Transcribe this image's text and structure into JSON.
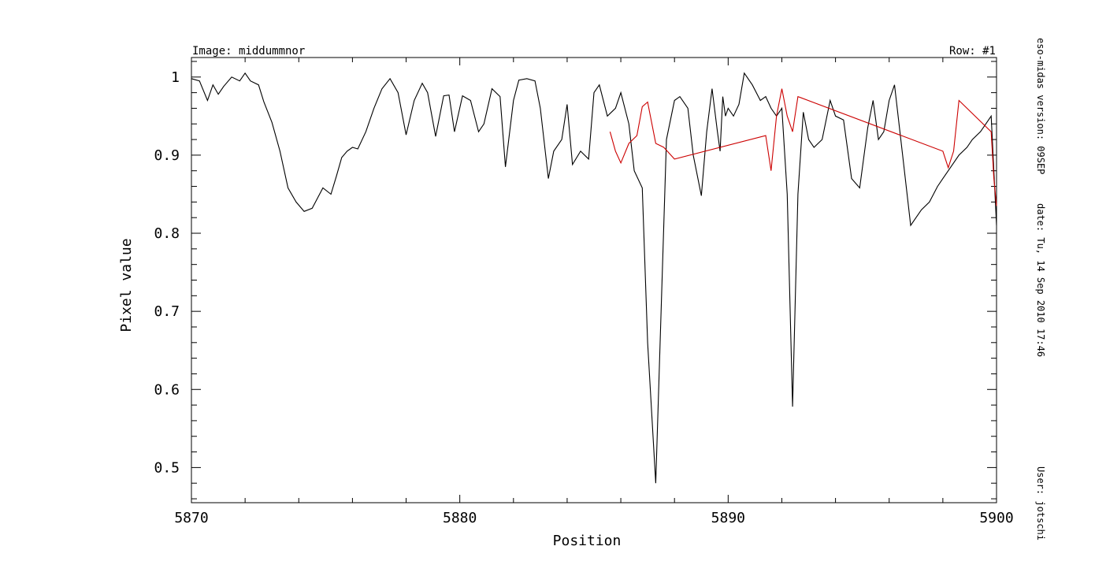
{
  "header": {
    "image_label": "Image: middummnor",
    "row_label": "Row: #1"
  },
  "side_info": {
    "version": "eso-midas version: 09SEP",
    "date": "date: Tu, 14 Sep 2010 17:46",
    "user": "User: jotschi"
  },
  "colors": {
    "primary_series": "#000000",
    "secondary_series": "#cc0000",
    "axes": "#000000"
  },
  "chart_data": {
    "type": "line",
    "title": "",
    "xlabel": "Position",
    "ylabel": "Pixel value",
    "xlim": [
      5870,
      5900
    ],
    "ylim": [
      0.455,
      1.025
    ],
    "x_ticks": [
      5870,
      5880,
      5890,
      5900
    ],
    "x_tick_labels": [
      "5870",
      "5880",
      "5890",
      "5900"
    ],
    "x_minor_step": 2,
    "y_ticks": [
      0.5,
      0.6,
      0.7,
      0.8,
      0.9,
      1.0
    ],
    "y_tick_labels": [
      "0.5",
      "0.6",
      "0.7",
      "0.8",
      "0.9",
      "1"
    ],
    "y_minor_step": 0.02,
    "grid": false,
    "series": [
      {
        "x": [
          5870.0,
          5870.3,
          5870.6,
          5870.8,
          5871.0,
          5871.2,
          5871.5,
          5871.8,
          5872.0,
          5872.2,
          5872.5,
          5872.7,
          5873.0,
          5873.3,
          5873.6,
          5873.9,
          5874.2,
          5874.5,
          5874.7,
          5874.9,
          5875.2,
          5875.4,
          5875.6,
          5875.8,
          5876.0,
          5876.2,
          5876.5,
          5876.8,
          5877.1,
          5877.4,
          5877.7,
          5878.0,
          5878.3,
          5878.6,
          5878.8,
          5879.1,
          5879.4,
          5879.6,
          5879.8,
          5880.1,
          5880.4,
          5880.7,
          5880.9,
          5881.2,
          5881.5,
          5881.7,
          5882.0,
          5882.2,
          5882.5,
          5882.8,
          5883.0,
          5883.3,
          5883.5,
          5883.8,
          5884.0,
          5884.2,
          5884.5,
          5884.8,
          5885.0,
          5885.2,
          5885.5,
          5885.8,
          5886.0,
          5886.3,
          5886.5,
          5886.8,
          5887.0,
          5887.3,
          5887.5,
          5887.7,
          5888.0,
          5888.2,
          5888.5,
          5888.7,
          5889.0,
          5889.2,
          5889.4,
          5889.6,
          5889.7,
          5889.8,
          5889.9,
          5890.0,
          5890.2,
          5890.4,
          5890.6,
          5890.9,
          5891.2,
          5891.4,
          5891.6,
          5891.8,
          5892.0,
          5892.2,
          5892.4,
          5892.6,
          5892.8,
          5893.0,
          5893.2,
          5893.5,
          5893.8,
          5894.0,
          5894.3,
          5894.6,
          5894.9,
          5895.2,
          5895.4,
          5895.6,
          5895.8,
          5896.0,
          5896.2,
          5896.5,
          5896.8,
          5897.0,
          5897.2,
          5897.5,
          5897.8,
          5898.0,
          5898.2,
          5898.4,
          5898.6,
          5898.9,
          5899.1,
          5899.4,
          5899.6,
          5899.8,
          5900.0
        ],
        "values": [
          0.998,
          0.995,
          0.97,
          0.99,
          0.978,
          0.988,
          1.0,
          0.995,
          1.005,
          0.995,
          0.99,
          0.968,
          0.942,
          0.905,
          0.858,
          0.84,
          0.828,
          0.832,
          0.845,
          0.858,
          0.85,
          0.873,
          0.897,
          0.905,
          0.91,
          0.908,
          0.93,
          0.96,
          0.985,
          0.998,
          0.98,
          0.926,
          0.97,
          0.992,
          0.98,
          0.924,
          0.976,
          0.977,
          0.93,
          0.976,
          0.97,
          0.93,
          0.94,
          0.985,
          0.975,
          0.885,
          0.97,
          0.996,
          0.998,
          0.995,
          0.96,
          0.87,
          0.905,
          0.92,
          0.965,
          0.888,
          0.905,
          0.895,
          0.98,
          0.99,
          0.95,
          0.96,
          0.98,
          0.94,
          0.88,
          0.858,
          0.66,
          0.48,
          0.7,
          0.92,
          0.97,
          0.975,
          0.96,
          0.9,
          0.848,
          0.93,
          0.985,
          0.93,
          0.905,
          0.975,
          0.95,
          0.96,
          0.95,
          0.965,
          1.005,
          0.99,
          0.97,
          0.975,
          0.96,
          0.95,
          0.96,
          0.85,
          0.578,
          0.85,
          0.955,
          0.92,
          0.91,
          0.92,
          0.97,
          0.95,
          0.945,
          0.87,
          0.858,
          0.935,
          0.97,
          0.92,
          0.93,
          0.97,
          0.99,
          0.9,
          0.81,
          0.82,
          0.83,
          0.84,
          0.86,
          0.87,
          0.88,
          0.89,
          0.9,
          0.91,
          0.92,
          0.93,
          0.94,
          0.95,
          0.81
        ]
      },
      {
        "x": [
          5885.6,
          5885.8,
          5886.0,
          5886.3,
          5886.6,
          5886.8,
          5887.0,
          5887.3,
          5887.6,
          5888.0,
          5891.4,
          5891.6,
          5891.8,
          5892.0,
          5892.2,
          5892.4,
          5892.6,
          5898.0,
          5898.2,
          5898.4,
          5898.6,
          5899.8,
          5899.9,
          5900.0
        ],
        "values": [
          0.93,
          0.905,
          0.89,
          0.915,
          0.925,
          0.962,
          0.968,
          0.915,
          0.91,
          0.895,
          0.925,
          0.88,
          0.95,
          0.985,
          0.95,
          0.93,
          0.975,
          0.905,
          0.884,
          0.905,
          0.97,
          0.93,
          0.87,
          0.835
        ]
      }
    ]
  }
}
